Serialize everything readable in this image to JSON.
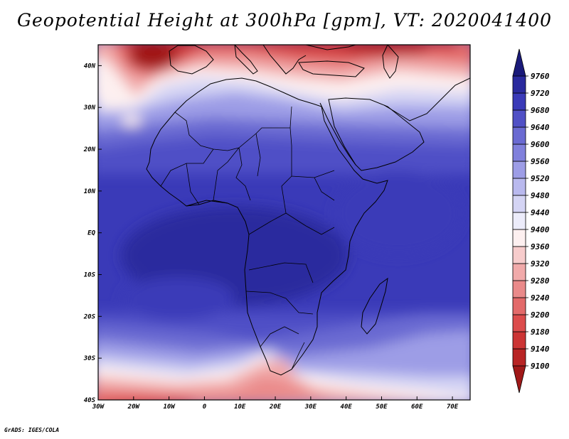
{
  "title": "Geopotential Height at 300hPa [gpm], VT: 2020041400",
  "credit": "GrADS: IGES/COLA",
  "map": {
    "variable": "Geopotential Height",
    "level": "300hPa",
    "units": "gpm",
    "valid_time": "2020041400",
    "lon_range": [
      -30,
      75
    ],
    "lat_range": [
      -40,
      45
    ],
    "lon_ticks": [
      {
        "value": -30,
        "label": "30W"
      },
      {
        "value": -20,
        "label": "20W"
      },
      {
        "value": -10,
        "label": "10W"
      },
      {
        "value": 0,
        "label": "0"
      },
      {
        "value": 10,
        "label": "10E"
      },
      {
        "value": 20,
        "label": "20E"
      },
      {
        "value": 30,
        "label": "30E"
      },
      {
        "value": 40,
        "label": "40E"
      },
      {
        "value": 50,
        "label": "50E"
      },
      {
        "value": 60,
        "label": "60E"
      },
      {
        "value": 70,
        "label": "70E"
      }
    ],
    "lat_ticks": [
      {
        "value": 40,
        "label": "40N"
      },
      {
        "value": 30,
        "label": "30N"
      },
      {
        "value": 20,
        "label": "20N"
      },
      {
        "value": 10,
        "label": "10N"
      },
      {
        "value": 0,
        "label": "EQ"
      },
      {
        "value": -10,
        "label": "10S"
      },
      {
        "value": -20,
        "label": "20S"
      },
      {
        "value": -30,
        "label": "30S"
      },
      {
        "value": -40,
        "label": "40S"
      }
    ]
  },
  "colorbar": {
    "levels": [
      "9100",
      "9140",
      "9180",
      "9200",
      "9240",
      "9280",
      "9320",
      "9360",
      "9400",
      "9440",
      "9480",
      "9520",
      "9560",
      "9600",
      "9640",
      "9680",
      "9720",
      "9760"
    ],
    "colors": [
      "#a01818",
      "#b82424",
      "#cc3535",
      "#dc4c4c",
      "#e36a6a",
      "#ea8a8a",
      "#f1aaaa",
      "#f7cccc",
      "#fdf0f0",
      "#ececfa",
      "#d4d4f4",
      "#b9b9ee",
      "#9d9de6",
      "#8080dc",
      "#6a6ad2",
      "#5050c6",
      "#3a3ab8",
      "#2a2a9e",
      "#1a1a7a"
    ]
  }
}
